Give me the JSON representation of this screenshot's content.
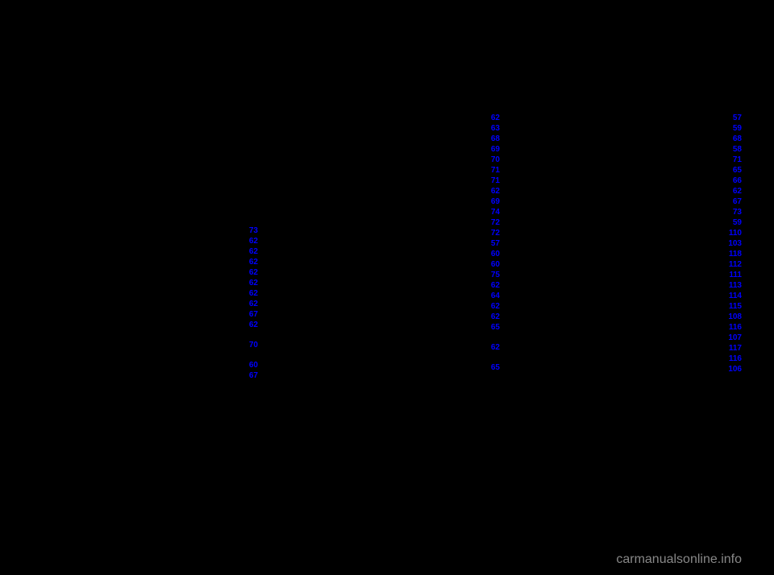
{
  "watermark": "carmanualsonline.info",
  "link_color": "#0000ff",
  "background_color": "#000000",
  "column1": {
    "items": [
      {
        "page": "73",
        "gap_after": false
      },
      {
        "page": "62",
        "gap_after": false
      },
      {
        "page": "62",
        "gap_after": false
      },
      {
        "page": "62",
        "gap_after": false
      },
      {
        "page": "62",
        "gap_after": false
      },
      {
        "page": "62",
        "gap_after": false
      },
      {
        "page": "62",
        "gap_after": false
      },
      {
        "page": "62",
        "gap_after": false
      },
      {
        "page": "67",
        "gap_after": false
      },
      {
        "page": "62",
        "gap_after": true
      },
      {
        "page": "70",
        "gap_after": true
      },
      {
        "page": "60",
        "gap_after": false
      },
      {
        "page": "67",
        "gap_after": false
      }
    ]
  },
  "column2": {
    "items": [
      {
        "page": "62",
        "gap_after": false
      },
      {
        "page": "63",
        "gap_after": false
      },
      {
        "page": "68",
        "gap_after": false
      },
      {
        "page": "69",
        "gap_after": false
      },
      {
        "page": "70",
        "gap_after": false
      },
      {
        "page": "71",
        "gap_after": false
      },
      {
        "page": "71",
        "gap_after": false
      },
      {
        "page": "62",
        "gap_after": false
      },
      {
        "page": "69",
        "gap_after": false
      },
      {
        "page": "74",
        "gap_after": false
      },
      {
        "page": "72",
        "gap_after": false
      },
      {
        "page": "72",
        "gap_after": false
      },
      {
        "page": "57",
        "gap_after": false
      },
      {
        "page": "60",
        "gap_after": false
      },
      {
        "page": "60",
        "gap_after": false
      },
      {
        "page": "75",
        "gap_after": false
      },
      {
        "page": "62",
        "gap_after": false
      },
      {
        "page": "64",
        "gap_after": false
      },
      {
        "page": "62",
        "gap_after": false
      },
      {
        "page": "62",
        "gap_after": false
      },
      {
        "page": "65",
        "gap_after": true
      },
      {
        "page": "62",
        "gap_after": true
      },
      {
        "page": "65",
        "gap_after": false
      }
    ]
  },
  "column3": {
    "items": [
      {
        "page": "57",
        "gap_after": false
      },
      {
        "page": "59",
        "gap_after": false
      },
      {
        "page": "68",
        "gap_after": false
      },
      {
        "page": "58",
        "gap_after": false
      },
      {
        "page": "71",
        "gap_after": false
      },
      {
        "page": "65",
        "gap_after": false
      },
      {
        "page": "66",
        "gap_after": false
      },
      {
        "page": "62",
        "gap_after": false
      },
      {
        "page": "67",
        "gap_after": false
      },
      {
        "page": "73",
        "gap_after": false
      },
      {
        "page": "59",
        "gap_after": false
      },
      {
        "page": "110",
        "gap_after": false
      },
      {
        "page": "103",
        "gap_after": false
      },
      {
        "page": "118",
        "gap_after": false
      },
      {
        "page": "112",
        "gap_after": false
      },
      {
        "page": "111",
        "gap_after": false
      },
      {
        "page": "113",
        "gap_after": false
      },
      {
        "page": "114",
        "gap_after": false
      },
      {
        "page": "115",
        "gap_after": false
      },
      {
        "page": "108",
        "gap_after": false
      },
      {
        "page": "116",
        "gap_after": false
      },
      {
        "page": "107",
        "gap_after": false
      },
      {
        "page": "117",
        "gap_after": false
      },
      {
        "page": "116",
        "gap_after": false
      },
      {
        "page": "106",
        "gap_after": false
      }
    ]
  }
}
